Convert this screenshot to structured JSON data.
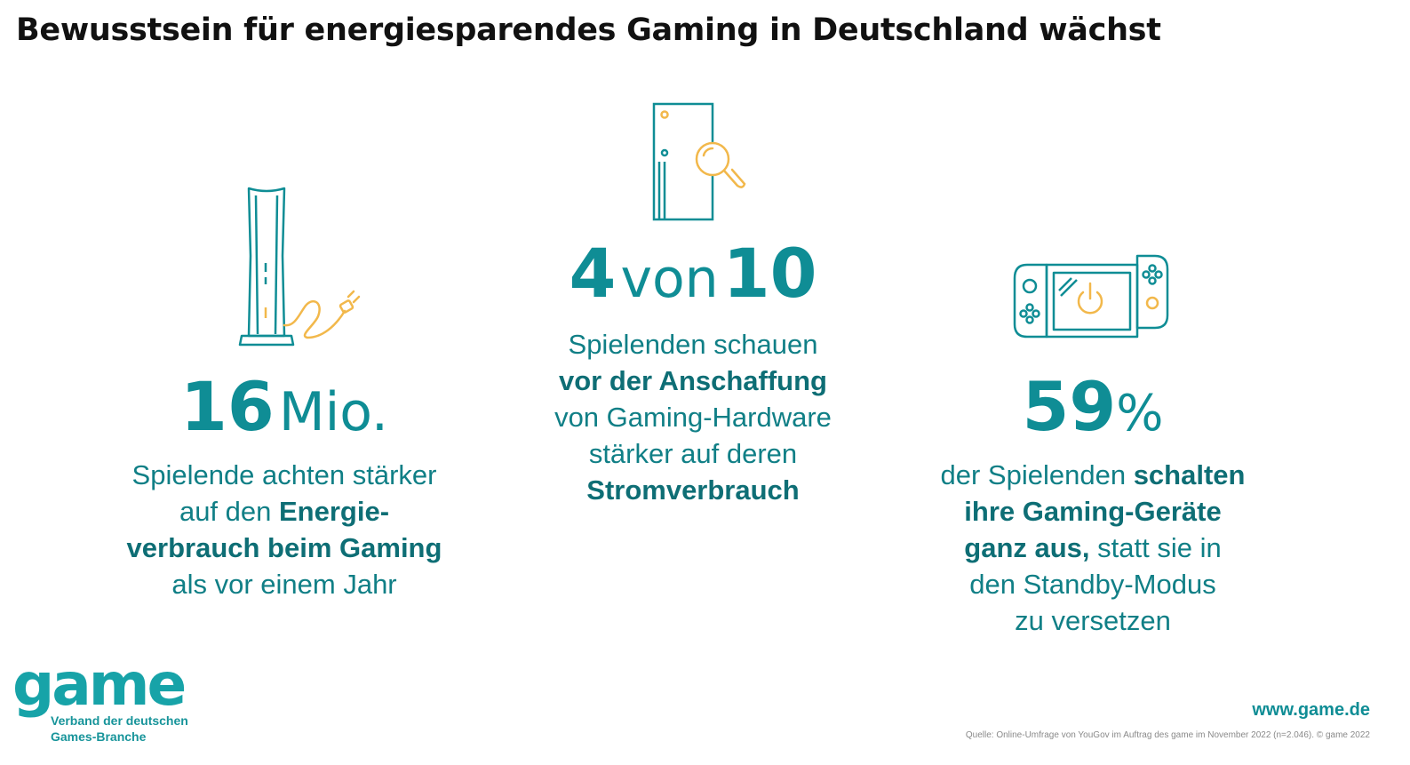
{
  "title": "Bewusstsein für energiesparendes Gaming in Deutschland wächst",
  "colors": {
    "primary": "#0f8d95",
    "accent": "#f2b84b",
    "title": "#111111"
  },
  "stats": [
    {
      "icon": "console-tower-plug-icon",
      "number": "16",
      "unit": "Mio.",
      "desc_1": "Spielende achten stärker",
      "desc_2_pre": "auf den ",
      "desc_2_bold": "Energie-",
      "desc_3_bold": "verbrauch beim Gaming",
      "desc_4": "als vor einem Jahr"
    },
    {
      "icon": "console-magnifier-icon",
      "number_a": "4",
      "connector": "von",
      "number_b": "10",
      "desc_1": "Spielenden schauen",
      "desc_2_bold": "vor der Anschaffung",
      "desc_3": "von Gaming-Hardware",
      "desc_4": "stärker auf deren",
      "desc_5_bold": "Stromverbrauch"
    },
    {
      "icon": "handheld-console-power-icon",
      "number": "59",
      "unit": "%",
      "desc_1_pre": "der Spielenden ",
      "desc_1_bold": "schalten",
      "desc_2_bold": "ihre Gaming-Geräte",
      "desc_3_bold": "ganz aus,",
      "desc_3_post": " statt sie in",
      "desc_4": "den Standby-Modus",
      "desc_5": "zu versetzen"
    }
  ],
  "footer": {
    "logo": "game",
    "logo_sub_1": "Verband der deutschen",
    "logo_sub_2": "Games-Branche",
    "url": "www.game.de",
    "source": "Quelle: Online-Umfrage von YouGov im Auftrag des game im November 2022 (n=2.046). © game 2022"
  }
}
